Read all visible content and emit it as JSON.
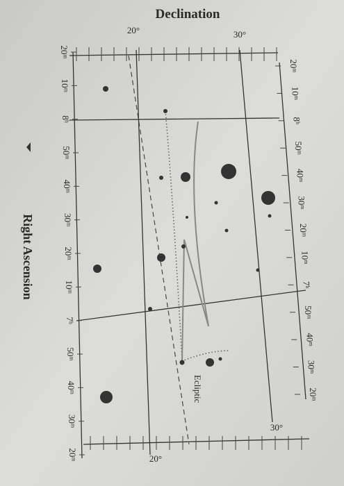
{
  "title": "Declination",
  "x_axis_label": "Right Ascension",
  "ecliptic_label": "Ecliptic",
  "dec_labels": {
    "top_30": "30°",
    "top_20": "20°",
    "bottom_30": "30°",
    "bottom_20": "20°"
  },
  "top_ra_labels": [
    "20ᵐ",
    "10ᵐ",
    "8ʰ",
    "50ᵐ",
    "40ᵐ",
    "30ᵐ",
    "20ᵐ",
    "10ᵐ",
    "7ʰ",
    "50ᵐ",
    "40ᵐ",
    "30ᵐ",
    "20ᵐ"
  ],
  "bottom_ra_labels": [
    "20ᵐ",
    "10ᵐ",
    "8ʰ",
    "50ᵐ",
    "40ᵐ",
    "30ᵐ",
    "20ᵐ",
    "10ᵐ",
    "7ʰ",
    "50ᵐ",
    "40ᵐ",
    "30ᵐ",
    "20ᵐ"
  ]
}
